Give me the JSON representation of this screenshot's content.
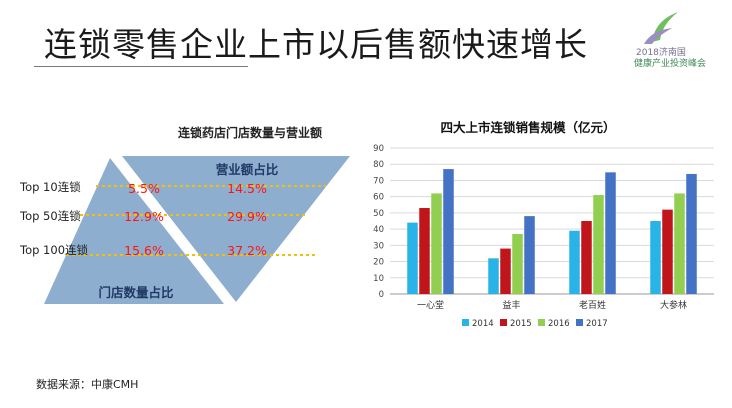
{
  "title": "连锁零售企业上市以后售额快速增长",
  "logo": {
    "line1": "2018济南国",
    "line2": "健康产业投资峰会",
    "icon": "leaf-swirl-icon"
  },
  "left": {
    "title": "连锁药店门店数量与营业额",
    "top_label": "营业额占比",
    "bottom_label": "门店数量占比",
    "rows": [
      {
        "label": "Top 10连锁",
        "store_pct": "5.5%",
        "revenue_pct": "14.5%"
      },
      {
        "label": "Top 50连锁",
        "store_pct": "12.9%",
        "revenue_pct": "29.9%"
      },
      {
        "label": "Top 100连锁",
        "store_pct": "15.6%",
        "revenue_pct": "37.2%"
      }
    ]
  },
  "source": "数据来源：中康CMH",
  "colors": {
    "triangle": "#8eaed0",
    "dash": "#f5c000",
    "pct": "#ff1414",
    "s2014": "#29b3e6",
    "s2015": "#c0161b",
    "s2016": "#92cf50",
    "s2017": "#4472c4"
  },
  "chart_data": {
    "type": "bar",
    "title": "四大上市连锁销售规模（亿元）",
    "categories": [
      "一心堂",
      "益丰",
      "老百姓",
      "大参林"
    ],
    "series": [
      {
        "name": "2014",
        "values": [
          44,
          22,
          39,
          45
        ]
      },
      {
        "name": "2015",
        "values": [
          53,
          28,
          45,
          52
        ]
      },
      {
        "name": "2016",
        "values": [
          62,
          37,
          61,
          62
        ]
      },
      {
        "name": "2017",
        "values": [
          77,
          48,
          75,
          74
        ]
      }
    ],
    "ylim": [
      0,
      90
    ],
    "yticks": [
      0,
      10,
      20,
      30,
      40,
      50,
      60,
      70,
      80,
      90
    ],
    "grid": true,
    "legend": "bottom"
  }
}
